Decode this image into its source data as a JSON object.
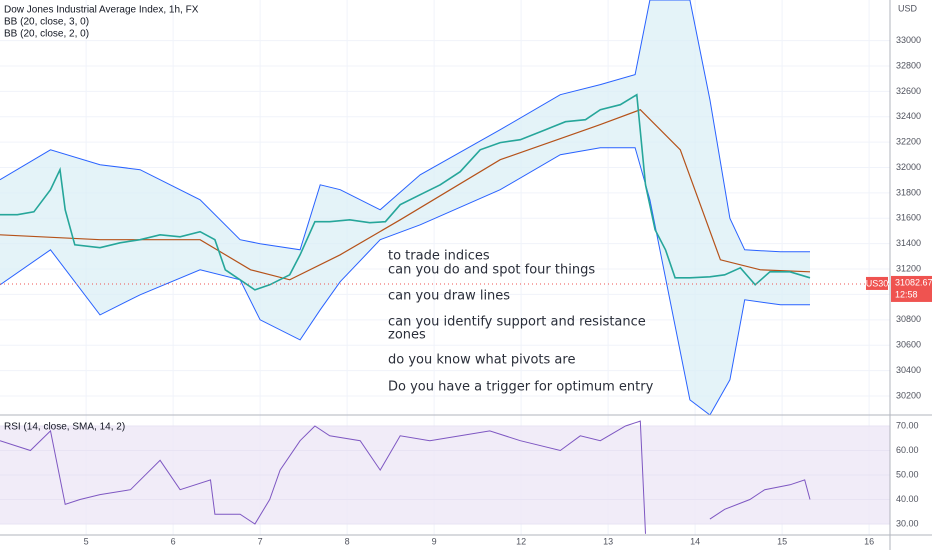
{
  "chart_data": [
    {
      "type": "line",
      "title": "Dow Jones Industrial Average Index, 1h, FX",
      "indicators": [
        "BB (20, close, 3, 0)",
        "BB (20, close, 2, 0)"
      ],
      "currency": "USD",
      "symbol": "US30",
      "last_price": 31082.67,
      "countdown": "12:58",
      "annotations": [
        "to trade indices",
        "can you do and spot four things",
        "can you draw lines",
        "can you identify support and resistance",
        "zones",
        "do you know what pivots are",
        "Do you have a trigger for optimum entry"
      ],
      "xlim": [
        -0.99,
        9.24
      ],
      "ylim": [
        30050,
        33320
      ],
      "yticks": [
        30200,
        30400,
        30600,
        30800,
        31000,
        31200,
        31400,
        31600,
        31800,
        32000,
        32200,
        32400,
        32600,
        32800,
        33000
      ],
      "grid": true,
      "band": {
        "color": "#2962ff",
        "fill": "#d8eef5",
        "x": [
          -0.99,
          -0.41,
          0.16,
          0.62,
          1.31,
          1.77,
          2.0,
          2.46,
          2.69,
          2.92,
          3.38,
          3.84,
          4.76,
          5.45,
          5.91,
          6.31,
          6.48,
          6.94,
          7.17,
          7.4,
          7.57,
          7.98,
          8.32
        ],
        "upper": [
          31904,
          32140,
          32022,
          31983,
          31746,
          31431,
          31400,
          31352,
          31864,
          31825,
          31667,
          31943,
          32298,
          32574,
          32653,
          32732,
          33320,
          33320,
          32535,
          31600,
          31352,
          31336,
          31336
        ],
        "lower": [
          31076,
          31352,
          30839,
          30997,
          31194,
          31115,
          30800,
          30642,
          30879,
          31100,
          31431,
          31549,
          31825,
          32101,
          32156,
          32156,
          31746,
          30169,
          30050,
          30327,
          30958,
          30918,
          30918
        ]
      },
      "basis": {
        "color": "#b5521a",
        "x": [
          -0.99,
          0.16,
          1.31,
          1.89,
          2.34,
          2.92,
          3.61,
          4.76,
          5.91,
          6.37,
          6.83,
          7.29,
          7.75,
          8.32
        ],
        "values": [
          31470,
          31431,
          31431,
          31194,
          31115,
          31312,
          31588,
          32062,
          32338,
          32456,
          32140,
          31273,
          31194,
          31178
        ]
      },
      "price": {
        "color": "#26a69a",
        "down_color": "#ef5350",
        "x": [
          -0.99,
          -0.79,
          -0.6,
          -0.41,
          -0.3,
          -0.24,
          -0.13,
          0.16,
          0.39,
          0.62,
          0.85,
          1.08,
          1.31,
          1.48,
          1.6,
          1.77,
          1.94,
          2.11,
          2.34,
          2.46,
          2.63,
          2.8,
          3.03,
          3.26,
          3.44,
          3.61,
          3.84,
          4.07,
          4.3,
          4.53,
          4.76,
          4.99,
          5.28,
          5.51,
          5.74,
          5.91,
          6.14,
          6.33,
          6.43,
          6.54,
          6.66,
          6.77,
          6.94,
          7.17,
          7.34,
          7.52,
          7.69,
          7.86,
          8.09,
          8.32
        ],
        "values": [
          31628,
          31628,
          31651,
          31825,
          31983,
          31667,
          31391,
          31368,
          31407,
          31431,
          31470,
          31454,
          31494,
          31431,
          31194,
          31115,
          31036,
          31076,
          31155,
          31312,
          31573,
          31573,
          31588,
          31565,
          31573,
          31707,
          31786,
          31864,
          31967,
          32140,
          32196,
          32219,
          32298,
          32361,
          32377,
          32456,
          32495,
          32574,
          31864,
          31510,
          31352,
          31131,
          31131,
          31139,
          31155,
          31210,
          31076,
          31178,
          31178,
          31131
        ]
      }
    },
    {
      "type": "line",
      "title": "RSI (14, close, SMA, 14, 2)",
      "color": "#7e57c2",
      "band": [
        30,
        70
      ],
      "band_fill": "#ede7f6",
      "xlim": [
        -0.99,
        9.24
      ],
      "ylim": [
        25.5,
        74.5
      ],
      "yticks": [
        {
          "value": 30,
          "label": "30.00"
        },
        {
          "value": 40,
          "label": "40.00"
        },
        {
          "value": 50,
          "label": "50.00"
        },
        {
          "value": 60,
          "label": "60.00"
        },
        {
          "value": 70,
          "label": "70.00"
        }
      ],
      "xticks": [
        {
          "value": 0,
          "label": "5"
        },
        {
          "value": 1,
          "label": "6"
        },
        {
          "value": 2,
          "label": "7"
        },
        {
          "value": 3,
          "label": "8"
        },
        {
          "value": 4,
          "label": "9"
        },
        {
          "value": 5,
          "label": "12"
        },
        {
          "value": 6,
          "label": "13"
        },
        {
          "value": 7,
          "label": "14"
        },
        {
          "value": 8,
          "label": "15"
        },
        {
          "value": 9,
          "label": "16"
        }
      ],
      "x": [
        -0.99,
        -0.64,
        -0.41,
        -0.24,
        -0.07,
        0.16,
        0.51,
        0.85,
        1.08,
        1.43,
        1.48,
        1.77,
        1.94,
        2.11,
        2.23,
        2.46,
        2.63,
        2.8,
        3.15,
        3.38,
        3.61,
        3.95,
        4.3,
        4.64,
        4.99,
        5.45,
        5.68,
        5.91,
        6.2,
        6.37,
        6.43,
        6.6,
        7.17,
        7.34,
        7.63,
        7.8,
        8.09,
        8.26,
        8.32
      ],
      "values": [
        64,
        60,
        68,
        38,
        40,
        42,
        44,
        56,
        44,
        48,
        34,
        34,
        30,
        40,
        52,
        64,
        70,
        66,
        64,
        52,
        66,
        64,
        66,
        68,
        64,
        60,
        66,
        64,
        70,
        72,
        26,
        null,
        32,
        36,
        40,
        44,
        46,
        48,
        40
      ]
    }
  ]
}
